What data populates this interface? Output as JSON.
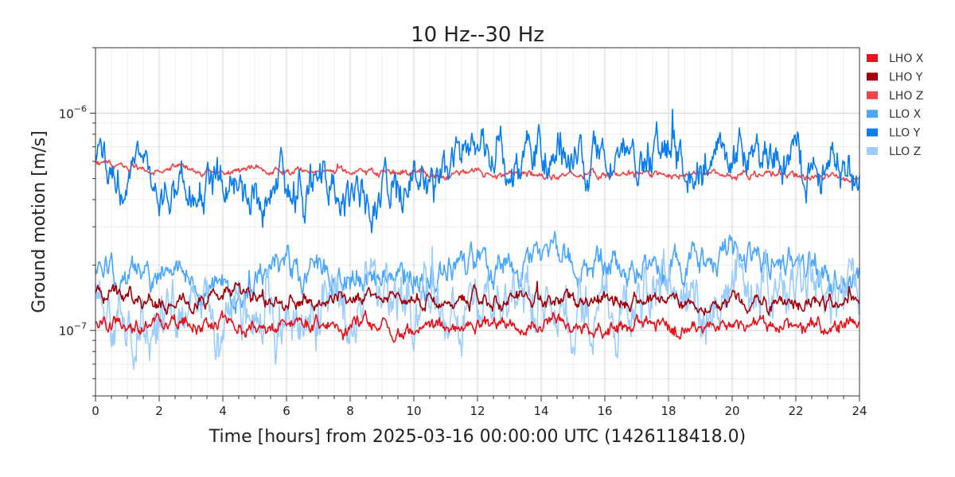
{
  "chart_data": {
    "type": "line",
    "title": "10 Hz--30 Hz",
    "xlabel": "Time [hours] from 2025-03-16 00:00:00 UTC (1426118418.0)",
    "ylabel": "Ground motion [m/s]",
    "x_scale": "linear",
    "y_scale": "log",
    "xlim": [
      0,
      24
    ],
    "ylim": [
      5e-08,
      2e-06
    ],
    "x_ticks": [
      0,
      2,
      4,
      6,
      8,
      10,
      12,
      14,
      16,
      18,
      20,
      22,
      24
    ],
    "x_tick_labels": [
      "0",
      "2",
      "4",
      "6",
      "8",
      "10",
      "12",
      "14",
      "16",
      "18",
      "20",
      "22",
      "24"
    ],
    "y_ticks": [
      1e-07,
      1e-06
    ],
    "y_tick_labels": [
      {
        "base": "10",
        "exp": "−7"
      },
      {
        "base": "10",
        "exp": "−6"
      }
    ],
    "grid": true,
    "legend_position": "outside-right",
    "x": [
      0,
      1,
      2,
      3,
      4,
      5,
      6,
      7,
      8,
      9,
      10,
      11,
      12,
      13,
      14,
      15,
      16,
      17,
      18,
      19,
      20,
      21,
      22,
      23,
      24
    ],
    "series": [
      {
        "name": "LHO X",
        "color": "#e8141c",
        "noise": 0.02,
        "values": [
          1.07e-07,
          1.07e-07,
          1.06e-07,
          1.06e-07,
          1.05e-07,
          1.05e-07,
          1.06e-07,
          1.05e-07,
          1.05e-07,
          1.05e-07,
          1.04e-07,
          1.05e-07,
          1.06e-07,
          1.06e-07,
          1.05e-07,
          1.05e-07,
          1.05e-07,
          1.05e-07,
          1.05e-07,
          1.05e-07,
          1.05e-07,
          1.05e-07,
          1.04e-07,
          1.04e-07,
          1.04e-07
        ]
      },
      {
        "name": "LHO Y",
        "color": "#a30008",
        "noise": 0.02,
        "values": [
          1.45e-07,
          1.45e-07,
          1.44e-07,
          1.43e-07,
          1.42e-07,
          1.42e-07,
          1.43e-07,
          1.42e-07,
          1.41e-07,
          1.41e-07,
          1.4e-07,
          1.4e-07,
          1.4e-07,
          1.39e-07,
          1.38e-07,
          1.38e-07,
          1.37e-07,
          1.37e-07,
          1.36e-07,
          1.36e-07,
          1.35e-07,
          1.35e-07,
          1.34e-07,
          1.33e-07,
          1.32e-07
        ]
      },
      {
        "name": "LHO Z",
        "color": "#f24348",
        "noise": 0.01,
        "values": [
          5.8e-07,
          5.7e-07,
          5.6e-07,
          5.5e-07,
          5.45e-07,
          5.4e-07,
          5.35e-07,
          5.35e-07,
          5.3e-07,
          5.3e-07,
          5.25e-07,
          5.25e-07,
          5.3e-07,
          5.25e-07,
          5.2e-07,
          5.2e-07,
          5.2e-07,
          5.2e-07,
          5.2e-07,
          5.2e-07,
          5.2e-07,
          5.2e-07,
          5.15e-07,
          5.15e-07,
          5.1e-07
        ]
      },
      {
        "name": "LLO X",
        "color": "#4ba6ff",
        "noise": 0.04,
        "values": [
          1.85e-07,
          1.75e-07,
          1.72e-07,
          1.75e-07,
          1.7e-07,
          1.75e-07,
          1.8e-07,
          1.75e-07,
          1.78e-07,
          1.72e-07,
          1.8e-07,
          1.85e-07,
          1.95e-07,
          1.95e-07,
          2e-07,
          2e-07,
          1.95e-07,
          1.9e-07,
          1.95e-07,
          2e-07,
          2.1e-07,
          2.1e-07,
          2e-07,
          1.9e-07,
          1.8e-07
        ]
      },
      {
        "name": "LLO Y",
        "color": "#0a7df0",
        "noise": 0.06,
        "values": [
          5.8e-07,
          5.2e-07,
          4.8e-07,
          4.7e-07,
          4.6e-07,
          4.7e-07,
          4.6e-07,
          4.5e-07,
          4.6e-07,
          4.5e-07,
          4.8e-07,
          5.6e-07,
          6.2e-07,
          6.4e-07,
          6.6e-07,
          6.8e-07,
          6.3e-07,
          6.1e-07,
          6.2e-07,
          6.3e-07,
          7e-07,
          6.5e-07,
          6.3e-07,
          5.8e-07,
          5.2e-07
        ]
      },
      {
        "name": "LLO Z",
        "color": "#9ccdff",
        "noise": 0.08,
        "values": [
          1.35e-07,
          1.2e-07,
          1.15e-07,
          1.3e-07,
          1.15e-07,
          1.25e-07,
          1.2e-07,
          1.3e-07,
          1.2e-07,
          1.3e-07,
          1.2e-07,
          1.3e-07,
          1.25e-07,
          1.2e-07,
          1.35e-07,
          1.3e-07,
          1.3e-07,
          1.35e-07,
          1.4e-07,
          1.45e-07,
          1.5e-07,
          1.6e-07,
          1.55e-07,
          1.5e-07,
          1.35e-07
        ]
      }
    ]
  }
}
